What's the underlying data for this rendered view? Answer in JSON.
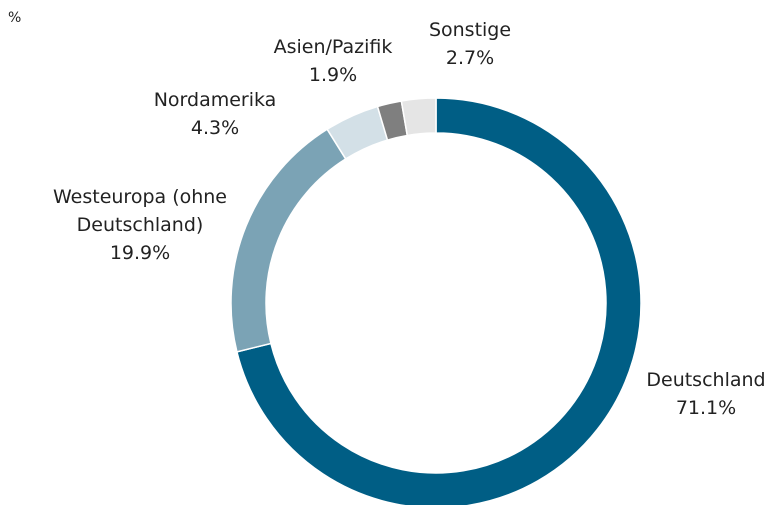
{
  "chart_data": {
    "type": "donut",
    "subtitle": "%",
    "categories": [
      "Deutschland",
      "Westeuropa (ohne Deutschland)",
      "Nordamerika",
      "Asien/Pazifik",
      "Sonstige"
    ],
    "values": [
      71.1,
      19.9,
      4.3,
      1.9,
      2.7
    ],
    "value_labels": [
      "71.1%",
      "19.9%",
      "4.3%",
      "1.9%",
      "2.7%"
    ],
    "colors": [
      "#005e85",
      "#7ba3b5",
      "#d3e0e7",
      "#7f7f7f",
      "#e5e5e5"
    ]
  }
}
